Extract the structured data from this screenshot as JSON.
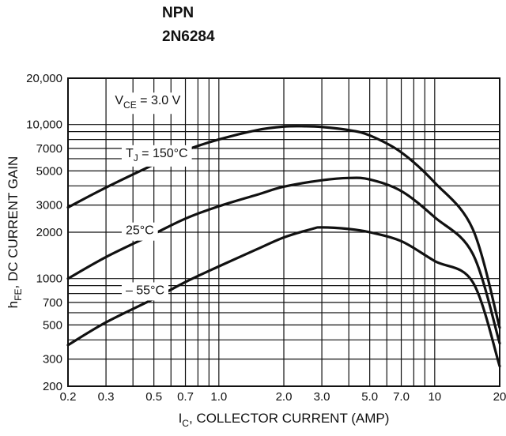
{
  "header": {
    "line1": "NPN",
    "line2": "2N6284"
  },
  "chart_data": {
    "type": "line",
    "title": "",
    "xlabel": {
      "main": "I",
      "sub": "C",
      "rest": ", COLLECTOR CURRENT (AMP)"
    },
    "ylabel": {
      "main": "h",
      "sub": "FE",
      "rest": ", DC CURRENT GAIN"
    },
    "x_scale": "log",
    "y_scale": "log",
    "xlim": [
      0.2,
      20
    ],
    "ylim": [
      200,
      20000
    ],
    "grid": true,
    "x_ticks": [
      {
        "v": 0.2,
        "label": "0.2"
      },
      {
        "v": 0.3,
        "label": "0.3"
      },
      {
        "v": 0.5,
        "label": "0.5"
      },
      {
        "v": 0.7,
        "label": "0.7"
      },
      {
        "v": 1.0,
        "label": "1.0"
      },
      {
        "v": 2.0,
        "label": "2.0"
      },
      {
        "v": 3.0,
        "label": "3.0"
      },
      {
        "v": 5.0,
        "label": "5.0"
      },
      {
        "v": 7.0,
        "label": "7.0"
      },
      {
        "v": 10,
        "label": "10"
      },
      {
        "v": 20,
        "label": "20"
      }
    ],
    "x_grid": [
      0.2,
      0.3,
      0.4,
      0.5,
      0.6,
      0.7,
      0.8,
      0.9,
      1,
      2,
      3,
      4,
      5,
      6,
      7,
      8,
      9,
      10,
      20
    ],
    "y_ticks": [
      {
        "v": 20000,
        "label": "20,000"
      },
      {
        "v": 10000,
        "label": "10,000"
      },
      {
        "v": 7000,
        "label": "7000"
      },
      {
        "v": 5000,
        "label": "5000"
      },
      {
        "v": 3000,
        "label": "3000"
      },
      {
        "v": 2000,
        "label": "2000"
      },
      {
        "v": 1000,
        "label": "1000"
      },
      {
        "v": 700,
        "label": "700"
      },
      {
        "v": 500,
        "label": "500"
      },
      {
        "v": 300,
        "label": "300"
      },
      {
        "v": 200,
        "label": "200"
      }
    ],
    "y_grid": [
      200,
      300,
      400,
      500,
      600,
      700,
      800,
      900,
      1000,
      2000,
      3000,
      4000,
      5000,
      6000,
      7000,
      8000,
      9000,
      10000,
      20000
    ],
    "condition": {
      "main": "V",
      "sub": "CE",
      "rest": " = 3.0 V",
      "x": 0.33,
      "y": 14500
    },
    "series": [
      {
        "name": {
          "main": "T",
          "sub": "J",
          "rest": " = 150°C"
        },
        "label_at": {
          "x": 0.37,
          "y": 6600
        },
        "points": [
          [
            0.2,
            2900
          ],
          [
            0.3,
            3900
          ],
          [
            0.5,
            5500
          ],
          [
            0.7,
            6800
          ],
          [
            1.0,
            8000
          ],
          [
            1.5,
            9200
          ],
          [
            2.0,
            9700
          ],
          [
            2.5,
            9750
          ],
          [
            3.0,
            9650
          ],
          [
            4.0,
            9200
          ],
          [
            5.0,
            8500
          ],
          [
            7.0,
            6600
          ],
          [
            10,
            4200
          ],
          [
            15,
            2100
          ],
          [
            20,
            480
          ]
        ]
      },
      {
        "name": {
          "main": "",
          "sub": "",
          "rest": "25°C"
        },
        "label_at": {
          "x": 0.37,
          "y": 2080
        },
        "points": [
          [
            0.2,
            1000
          ],
          [
            0.3,
            1380
          ],
          [
            0.5,
            1950
          ],
          [
            0.7,
            2450
          ],
          [
            1.0,
            2950
          ],
          [
            1.5,
            3500
          ],
          [
            2.0,
            3950
          ],
          [
            3.0,
            4350
          ],
          [
            4.0,
            4500
          ],
          [
            5.0,
            4400
          ],
          [
            7.0,
            3700
          ],
          [
            10,
            2500
          ],
          [
            15,
            1450
          ],
          [
            20,
            380
          ]
        ]
      },
      {
        "name": {
          "main": "",
          "sub": "",
          "rest": "– 55°C"
        },
        "label_at": {
          "x": 0.37,
          "y": 850
        },
        "points": [
          [
            0.2,
            370
          ],
          [
            0.3,
            520
          ],
          [
            0.5,
            740
          ],
          [
            0.7,
            950
          ],
          [
            1.0,
            1200
          ],
          [
            1.5,
            1550
          ],
          [
            2.0,
            1850
          ],
          [
            2.7,
            2100
          ],
          [
            3.0,
            2150
          ],
          [
            4.0,
            2100
          ],
          [
            5.0,
            2000
          ],
          [
            7.0,
            1750
          ],
          [
            10,
            1300
          ],
          [
            15,
            950
          ],
          [
            20,
            270
          ]
        ]
      }
    ]
  }
}
